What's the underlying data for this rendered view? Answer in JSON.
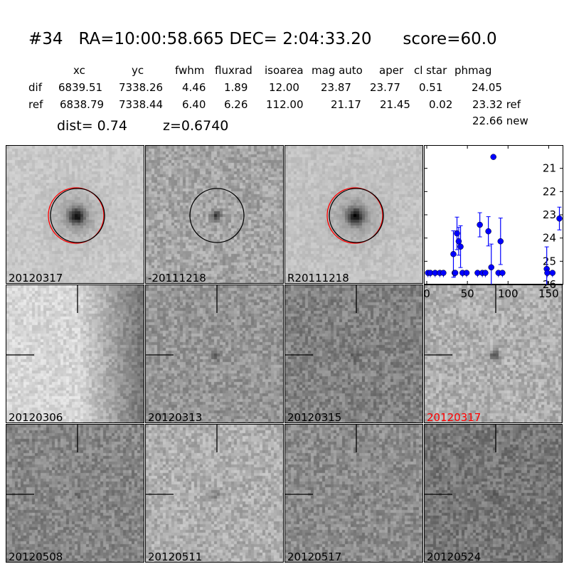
{
  "title": {
    "id": "#34",
    "ra": "RA=10:00:58.665",
    "dec": "DEC= 2:04:33.20",
    "score": "score=60.0"
  },
  "table": {
    "headers": [
      "xc",
      "yc",
      "fwhm",
      "fluxrad",
      "isoarea",
      "mag auto",
      "aper",
      "cl star",
      "phmag"
    ],
    "rows": [
      {
        "label": "dif",
        "values": [
          "6839.51",
          "7338.26",
          "4.46",
          "1.89",
          "12.00",
          "23.87",
          "23.77",
          "0.51",
          "24.05"
        ]
      },
      {
        "label": "ref",
        "values": [
          "6838.79",
          "7338.44",
          "6.40",
          "6.26",
          "112.00",
          "21.17",
          "21.45",
          "0.02",
          "23.32 ref"
        ]
      }
    ],
    "phmag_new": "22.66 new",
    "dist": "dist=  0.74",
    "z": "z=0.6740"
  },
  "stamps": [
    {
      "label": "20120317",
      "circles": [
        "red",
        "black"
      ]
    },
    {
      "label": "-20111218",
      "circles": [
        "black"
      ]
    },
    {
      "label": "R20111218",
      "circles": [
        "red",
        "black"
      ]
    },
    {
      "label": "20120306",
      "marker": true
    },
    {
      "label": "20120313",
      "marker": true
    },
    {
      "label": "20120315",
      "marker": true
    },
    {
      "label": "20120317",
      "marker": true,
      "label_color": "#ff0000"
    },
    {
      "label": "20120508",
      "marker": true
    },
    {
      "label": "20120511",
      "marker": true
    },
    {
      "label": "20120517",
      "marker": true
    },
    {
      "label": "20120524",
      "marker": true
    }
  ],
  "chart_data": {
    "type": "scatter",
    "title": "",
    "xlabel": "",
    "ylabel": "",
    "xlim": [
      -3.5,
      168
    ],
    "ylim": [
      26,
      20
    ],
    "y_inverted": true,
    "xticks": [
      "0",
      "50",
      "100",
      "150"
    ],
    "yticks": [
      "21",
      "22",
      "23",
      "24",
      "25",
      "26"
    ],
    "color": "#0000ff",
    "limits": {
      "y": 25.5,
      "x": [
        1.5,
        4.4,
        10.3,
        16.1,
        20.5,
        34.3,
        35.1,
        44,
        49,
        62.5,
        68.4,
        72.1,
        88.2,
        93.1,
        148.3,
        154.7
      ]
    },
    "detections": [
      {
        "x": 32.8,
        "y": 24.69,
        "err": 1.0
      },
      {
        "x": 37.2,
        "y": 23.8,
        "err": 0.7
      },
      {
        "x": 39.3,
        "y": 24.14,
        "err": 0.6
      },
      {
        "x": 41.6,
        "y": 24.37,
        "err": 0.9
      },
      {
        "x": 65.3,
        "y": 23.43,
        "err": 0.52
      },
      {
        "x": 75.8,
        "y": 23.71,
        "err": 0.63
      },
      {
        "x": 79.4,
        "y": 25.26,
        "err": 1.0
      },
      {
        "x": 82,
        "y": 20.51,
        "err": 0.05
      },
      {
        "x": 90.8,
        "y": 24.14,
        "err": 1.0
      },
      {
        "x": 147.6,
        "y": 25.33,
        "err": 0.95
      },
      {
        "x": 163.2,
        "y": 23.16,
        "err": 0.49
      }
    ]
  }
}
